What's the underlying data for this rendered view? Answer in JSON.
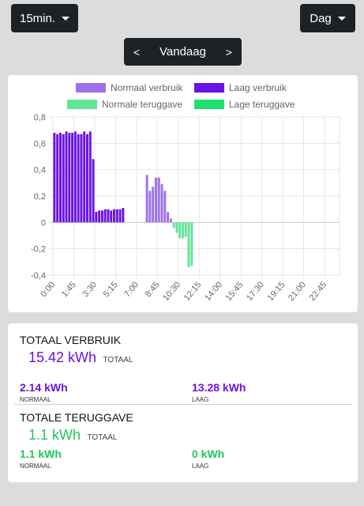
{
  "controls": {
    "interval": "15min.",
    "period": "Dag",
    "nav_prev": "<",
    "nav_label": "Vandaag",
    "nav_next": ">"
  },
  "legend": {
    "normal_use": "Normaal verbruik",
    "low_use": "Laag verbruik",
    "normal_return": "Normale teruggave",
    "low_return": "Lage teruggave"
  },
  "colors": {
    "normal_use": "#9e71ea",
    "low_use": "#6a13e6",
    "normal_return": "#63e597",
    "low_return": "#1de06e",
    "use_text": "#6a13e6",
    "return_text": "#1dc85a"
  },
  "chart_data": {
    "type": "bar",
    "stacked": true,
    "interval_minutes": 15,
    "ylim": [
      -0.4,
      0.8
    ],
    "yticks": [
      "0,8",
      "0,6",
      "0,4",
      "0,2",
      "0",
      "-0,2",
      "-0,4"
    ],
    "xticks": [
      "0:00",
      "1:45",
      "3:30",
      "5:15",
      "7:00",
      "8:45",
      "10:30",
      "12:15",
      "14:00",
      "15:45",
      "17:30",
      "19:15",
      "21:00",
      "22:45"
    ],
    "grid": true,
    "legend_position": "top",
    "series": [
      {
        "name": "Normaal verbruik",
        "values": [
          0,
          0,
          0,
          0,
          0,
          0,
          0,
          0,
          0,
          0,
          0,
          0,
          0,
          0,
          0,
          0,
          0,
          0,
          0,
          0,
          0,
          0,
          0,
          0,
          0,
          0,
          0,
          0,
          0,
          0,
          0,
          0.36,
          0.24,
          0.27,
          0.34,
          0.34,
          0.29,
          0.24,
          0.08,
          0.03
        ]
      },
      {
        "name": "Laag verbruik",
        "values": [
          0.68,
          0.67,
          0.68,
          0.67,
          0.69,
          0.68,
          0.68,
          0.69,
          0.67,
          0.67,
          0.69,
          0.67,
          0.69,
          0.48,
          0.08,
          0.09,
          0.09,
          0.1,
          0.1,
          0.09,
          0.1,
          0.1,
          0.1,
          0.11,
          0,
          0,
          0,
          0,
          0,
          0,
          0,
          0,
          0,
          0,
          0,
          0,
          0,
          0,
          0,
          0
        ]
      },
      {
        "name": "Normale teruggave",
        "values": [
          0,
          0,
          0,
          0,
          0,
          0,
          0,
          0,
          0,
          0,
          0,
          0,
          0,
          0,
          0,
          0,
          0,
          0,
          0,
          0,
          0,
          0,
          0,
          0,
          0,
          0,
          0,
          0,
          0,
          0,
          0,
          0,
          0,
          0,
          0,
          0,
          0,
          0,
          0,
          0,
          -0.04,
          -0.08,
          -0.12,
          -0.12,
          -0.11,
          -0.34,
          -0.33
        ]
      },
      {
        "name": "Lage teruggave",
        "values": []
      }
    ]
  },
  "usage": {
    "title": "TOTAAL VERBRUIK",
    "total": "15.42 kWh",
    "total_label": "TOTAAL",
    "normal": "2.14 kWh",
    "normal_label": "NORMAAL",
    "low": "13.28 kWh",
    "low_label": "LAAG"
  },
  "return": {
    "title": "TOTALE TERUGGAVE",
    "total": "1.1 kWh",
    "total_label": "TOTAAL",
    "normal": "1.1 kWh",
    "normal_label": "NORMAAL",
    "low": "0 kWh",
    "low_label": "LAAG"
  }
}
